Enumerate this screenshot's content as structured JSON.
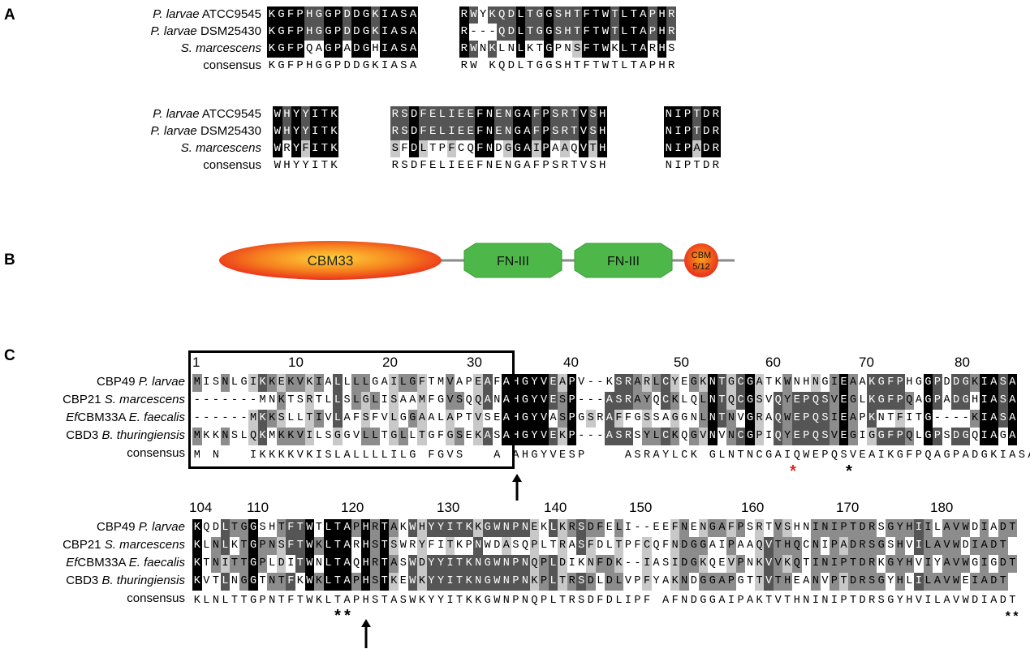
{
  "panels": {
    "a": "A",
    "b": "B",
    "c": "C"
  },
  "panel_a": {
    "labels": [
      {
        "sp": "P. larvae",
        "strain": " ATCC9545"
      },
      {
        "sp": "P. larvae",
        "strain": " DSM25430"
      },
      {
        "sp": "S. marcescens",
        "strain": ""
      },
      {
        "sp": "",
        "strain": "consensus"
      }
    ],
    "block1": {
      "rows": [
        "KGFPHGGPDDGKIASA",
        "KGFPHGGPDDGKIASA",
        "KGFPQAGPADGHIASA"
      ],
      "consensus": "KGFPHGGPDDGKIASA"
    },
    "block2": {
      "rows": [
        "RWYKQDLTGGSHTFTWTLTAPHR",
        "R---QDLTGGSHTFTWTLTAPHR",
        "RWNKLNLKTGPNSFTWKLTARHS"
      ],
      "consensus": "RW KQDLTGGSHTFTWTLTAPHR"
    },
    "block3": {
      "rows": [
        "WHYYITK",
        "WHYYITK",
        "WRYFITK"
      ],
      "consensus": "WHYYITK"
    },
    "block4": {
      "rows": [
        "RSDFELIEEFNENGAFPSRTVSH",
        "RSDFELIEEFNENGAFPSRTVSH",
        "SFDLTPFCQFNDGGAIPAAQVTH"
      ],
      "consensus": "RSDFELIEEFNENGAFPSRTVSH"
    },
    "block5": {
      "rows": [
        "NIPTDR",
        "NIPTDR",
        "NIPADR"
      ],
      "consensus": "NIPTDR"
    }
  },
  "panel_b": {
    "domains": [
      "CBM33",
      "FN-III",
      "FN-III",
      "CBM",
      "5/12"
    ]
  },
  "panel_c": {
    "labels": [
      {
        "pre": "",
        "sp": "CBP49 ",
        "it": "P. larvae",
        "rest": ""
      },
      {
        "pre": "",
        "sp": "CBP21 ",
        "it": "S. marcescens",
        "rest": ""
      },
      {
        "pre": "Ef",
        "sp": "CBM33A ",
        "it": "E. faecalis",
        "rest": ""
      },
      {
        "pre": "",
        "sp": "CBD3 ",
        "it": "B. thuringiensis",
        "rest": ""
      },
      {
        "pre": "",
        "sp": "consensus",
        "it": "",
        "rest": ""
      }
    ],
    "top_numbers": [
      "1",
      "10",
      "20",
      "30",
      "40",
      "50",
      "60",
      "70",
      "80"
    ],
    "top_rows": [
      "MISNLGIKKEKVKIALLLLGAILGFTMVAPEAFAHGYVEAPV--KSRARLCYEGKNTGCGATKWNHNGIEAAKGFPHGGPDDGKIASA",
      "-------MNKTSRTLLSLGLISAAMFGVSQQANAHGYVESP---ASRAYQCKLQLNTQCGSVQYEPQSVEGLKGFPQAGPADGHIASA",
      "------MKKSLLTIVLAFSFVLGGAALAPTVSEAHGYVASPGSRAFFGSSAGGNLNTNVGRAQWEPQSIEAPKNTFITG----KIASA",
      "MKKNSLQKMKKVILSGGVLLTGLLTGFGSEKASAHGYVEKP---ASRSYLCKQGVNVNCGPIQYEPQSVEGIGGFPQLGPSDGQIAGA"
    ],
    "top_consensus": "M N   IKKKKVKISLALLLLILG FGVS   A AHGYVESP    ASRAYLCK GLNTNCGAIQWEPQSVEAIKGFPQAGPADGKIASA",
    "bottom_numbers": [
      "104",
      "110",
      "120",
      "130",
      "140",
      "150",
      "160",
      "170",
      "180"
    ],
    "bottom_rows": [
      "KQDLTGGSHTFTWTLTAPHRTAKWHYYITKKGWNPNEKLKRSDFELI--EEFNENGAFPSRTVSHNINIPTDRSGYHIILAVWDIADT",
      "KLNLKTGPNSFTWKLTARHSTSWRYFITKPNWDASQPLTRASFDLTPFCQFNDGGAIPAAQVTHQCNIPADRSGSHVILAVWDIADT",
      "KTNITTGPLDITWNLTAQHRTASWDYYITKNGWNPNQPLDIKNFDK--IASIDGKQEVPNKVVKQTINIPTDRKGYHVIYAVWGIGDT",
      "KVTLNGGTNTFKWKLTAPHSTKEWKYYITKNGWNPNKPLTRSDLDLVPFYAKNDGGAPGTTVTHEANVPTDRSGYHLILAVWEIADT"
    ],
    "bottom_consensus": "KLNLTTGPNTFTWKLTAPHSTASWKYYITKKGWNPNQPLTRSDFDLIPF AFNDGGAIPAKTVTHNINIPTDRSGYHVILAVWDIADT",
    "stars": {
      "red": "*",
      "black": "*",
      "double_left": "**",
      "double_right": "**"
    },
    "highlight_color": "#e8221b"
  }
}
